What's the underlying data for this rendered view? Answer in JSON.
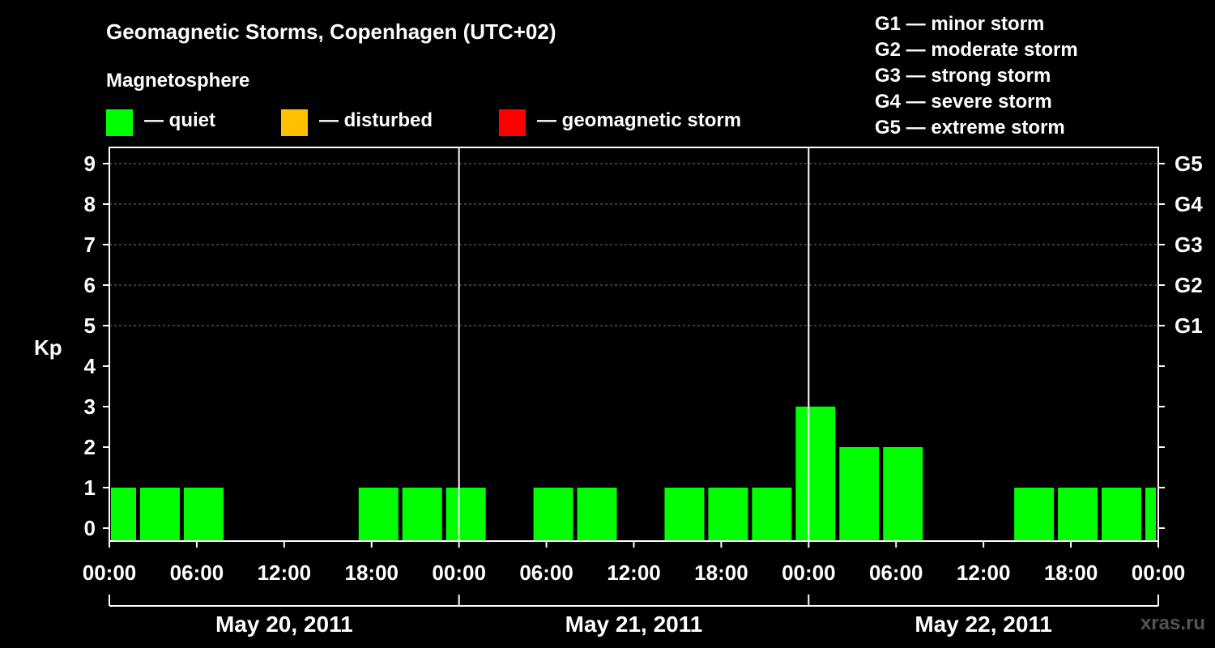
{
  "title": "Geomagnetic Storms, Copenhagen (UTC+02)",
  "legend": {
    "heading": "Magnetosphere",
    "items": [
      {
        "label": "— quiet",
        "color": "#00ff00"
      },
      {
        "label": "— disturbed",
        "color": "#ffc000"
      },
      {
        "label": "— geomagnetic storm",
        "color": "#ff0000"
      }
    ]
  },
  "storm_scale": [
    "G1 — minor storm",
    "G2 — moderate storm",
    "G3 — strong storm",
    "G4 — severe storm",
    "G5 — extreme storm"
  ],
  "watermark": "xras.ru",
  "chart_data": {
    "type": "bar",
    "title": "Geomagnetic Storms, Copenhagen (UTC+02)",
    "ylabel": "Kp",
    "ylim": [
      0,
      9
    ],
    "y_ticks": [
      0,
      1,
      2,
      3,
      4,
      5,
      6,
      7,
      8,
      9
    ],
    "right_axis_labels": [
      {
        "kp": 5,
        "label": "G1"
      },
      {
        "kp": 6,
        "label": "G2"
      },
      {
        "kp": 7,
        "label": "G3"
      },
      {
        "kp": 8,
        "label": "G4"
      },
      {
        "kp": 9,
        "label": "G5"
      }
    ],
    "x_range_hours": [
      0,
      72
    ],
    "x_tick_labels": [
      "00:00",
      "06:00",
      "12:00",
      "18:00",
      "00:00",
      "06:00",
      "12:00",
      "18:00",
      "00:00",
      "06:00",
      "12:00",
      "18:00",
      "00:00"
    ],
    "days": [
      "May 20, 2011",
      "May 21, 2011",
      "May 22, 2011"
    ],
    "bars": [
      {
        "start_h": 0,
        "end_h": 2,
        "kp": 1
      },
      {
        "start_h": 2,
        "end_h": 5,
        "kp": 1
      },
      {
        "start_h": 5,
        "end_h": 8,
        "kp": 1
      },
      {
        "start_h": 8,
        "end_h": 11,
        "kp": 0
      },
      {
        "start_h": 11,
        "end_h": 14,
        "kp": 0
      },
      {
        "start_h": 14,
        "end_h": 17,
        "kp": 0
      },
      {
        "start_h": 17,
        "end_h": 20,
        "kp": 1
      },
      {
        "start_h": 20,
        "end_h": 23,
        "kp": 1
      },
      {
        "start_h": 23,
        "end_h": 26,
        "kp": 1
      },
      {
        "start_h": 26,
        "end_h": 29,
        "kp": 0
      },
      {
        "start_h": 29,
        "end_h": 32,
        "kp": 1
      },
      {
        "start_h": 32,
        "end_h": 35,
        "kp": 1
      },
      {
        "start_h": 35,
        "end_h": 38,
        "kp": 0
      },
      {
        "start_h": 38,
        "end_h": 41,
        "kp": 1
      },
      {
        "start_h": 41,
        "end_h": 44,
        "kp": 1
      },
      {
        "start_h": 44,
        "end_h": 47,
        "kp": 1
      },
      {
        "start_h": 47,
        "end_h": 50,
        "kp": 3
      },
      {
        "start_h": 50,
        "end_h": 53,
        "kp": 2
      },
      {
        "start_h": 53,
        "end_h": 56,
        "kp": 2
      },
      {
        "start_h": 56,
        "end_h": 59,
        "kp": 0
      },
      {
        "start_h": 59,
        "end_h": 62,
        "kp": 0
      },
      {
        "start_h": 62,
        "end_h": 65,
        "kp": 1
      },
      {
        "start_h": 65,
        "end_h": 68,
        "kp": 1
      },
      {
        "start_h": 68,
        "end_h": 71,
        "kp": 1
      },
      {
        "start_h": 71,
        "end_h": 72,
        "kp": 1
      }
    ],
    "bar_color": "#00ff00"
  }
}
